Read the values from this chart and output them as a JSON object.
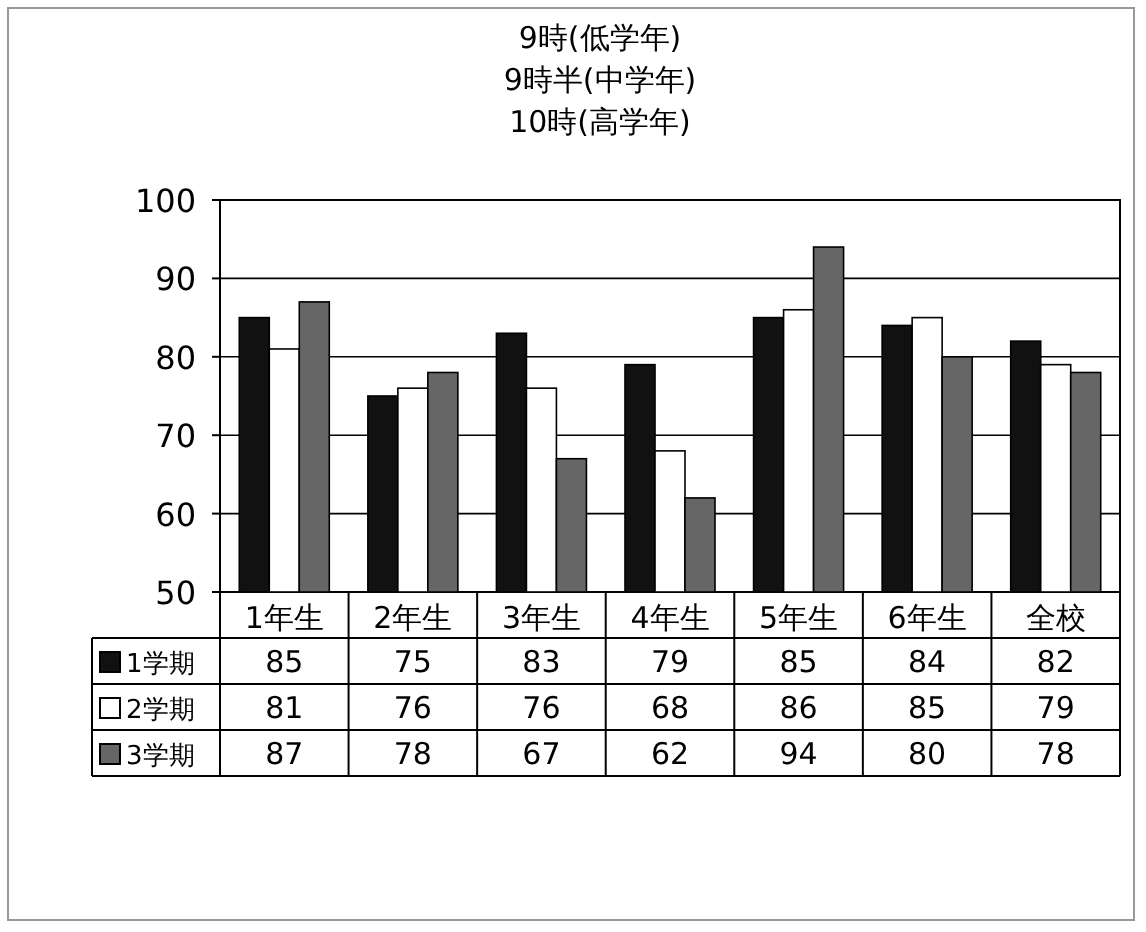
{
  "chart_data": {
    "type": "bar",
    "title": "9時(低学年)\n9時半(中学年)\n10時(高学年)",
    "categories": [
      "1年生",
      "2年生",
      "3年生",
      "4年生",
      "5年生",
      "6年生",
      "全校"
    ],
    "series": [
      {
        "name": "1学期",
        "color": "#111111",
        "values": [
          85,
          75,
          83,
          79,
          85,
          84,
          82
        ]
      },
      {
        "name": "2学期",
        "color": "#ffffff",
        "values": [
          81,
          76,
          76,
          68,
          86,
          85,
          79
        ]
      },
      {
        "name": "3学期",
        "color": "#666666",
        "values": [
          87,
          78,
          67,
          62,
          94,
          80,
          78
        ]
      }
    ],
    "ylim": [
      50,
      100
    ],
    "yticks": [
      50,
      60,
      70,
      80,
      90,
      100
    ],
    "grid": "y",
    "legend": "left",
    "data_labels": true
  }
}
